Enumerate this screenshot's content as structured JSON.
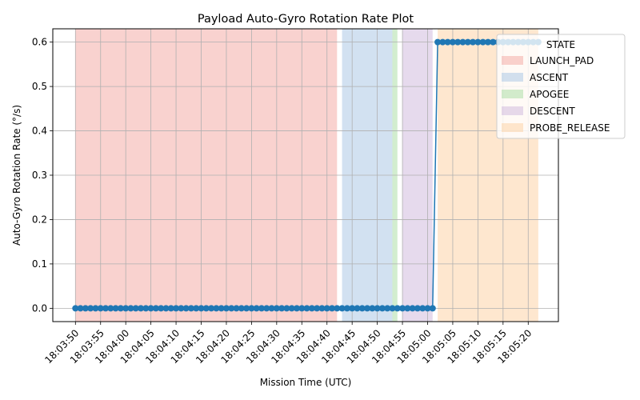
{
  "chart_data": {
    "type": "line",
    "title": "Payload Auto-Gyro Rotation Rate Plot",
    "xlabel": "Mission Time (UTC)",
    "ylabel": "Auto-Gyro Rotation Rate (°/s)",
    "ylim": [
      -0.03,
      0.63
    ],
    "y_ticks": [
      0.0,
      0.1,
      0.2,
      0.3,
      0.4,
      0.5,
      0.6
    ],
    "y_tick_labels": [
      "0.0",
      "0.1",
      "0.2",
      "0.3",
      "0.4",
      "0.5",
      "0.6"
    ],
    "x_ticks": [
      "18:03:50",
      "18:03:55",
      "18:04:00",
      "18:04:05",
      "18:04:10",
      "18:04:15",
      "18:04:20",
      "18:04:25",
      "18:04:30",
      "18:04:35",
      "18:04:40",
      "18:04:45",
      "18:04:50",
      "18:04:55",
      "18:05:00",
      "18:05:05",
      "18:05:10",
      "18:05:15",
      "18:05:20"
    ],
    "xlim": [
      "18:03:45.5",
      "18:05:26"
    ],
    "grid": true,
    "line_color": "#1f77b4",
    "legend": {
      "title": "STATE",
      "placement": "top-right",
      "entries": [
        {
          "label": "LAUNCH_PAD",
          "color": "#f4a6a0"
        },
        {
          "label": "ASCENT",
          "color": "#a6c4e4"
        },
        {
          "label": "APOGEE",
          "color": "#a6dca0"
        },
        {
          "label": "DESCENT",
          "color": "#cdb6db"
        },
        {
          "label": "PROBE_RELEASE",
          "color": "#fdd0a0"
        }
      ]
    },
    "state_spans": [
      {
        "state": "LAUNCH_PAD",
        "start": "18:03:50",
        "end": "18:04:42"
      },
      {
        "state": "ASCENT",
        "start": "18:04:43",
        "end": "18:04:53"
      },
      {
        "state": "APOGEE",
        "start": "18:04:53",
        "end": "18:04:54"
      },
      {
        "state": "DESCENT",
        "start": "18:04:55",
        "end": "18:05:01"
      },
      {
        "state": "PROBE_RELEASE",
        "start": "18:05:02",
        "end": "18:05:22"
      }
    ],
    "series": [
      {
        "x_start": "18:03:50",
        "x_step_seconds": 1,
        "values": [
          0,
          0,
          0,
          0,
          0,
          0,
          0,
          0,
          0,
          0,
          0,
          0,
          0,
          0,
          0,
          0,
          0,
          0,
          0,
          0,
          0,
          0,
          0,
          0,
          0,
          0,
          0,
          0,
          0,
          0,
          0,
          0,
          0,
          0,
          0,
          0,
          0,
          0,
          0,
          0,
          0,
          0,
          0,
          0,
          0,
          0,
          0,
          0,
          0,
          0,
          0,
          0,
          0,
          0,
          0,
          0,
          0,
          0,
          0,
          0,
          0,
          0,
          0,
          0,
          0,
          0,
          0,
          0,
          0,
          0,
          0,
          0,
          0.6,
          0.6,
          0.6,
          0.6,
          0.6,
          0.6,
          0.6,
          0.6,
          0.6,
          0.6,
          0.6,
          0.6,
          0.6,
          0.6,
          0.6,
          0.6,
          0.6,
          0.6,
          0.6,
          0.6,
          0.6
        ]
      }
    ]
  }
}
